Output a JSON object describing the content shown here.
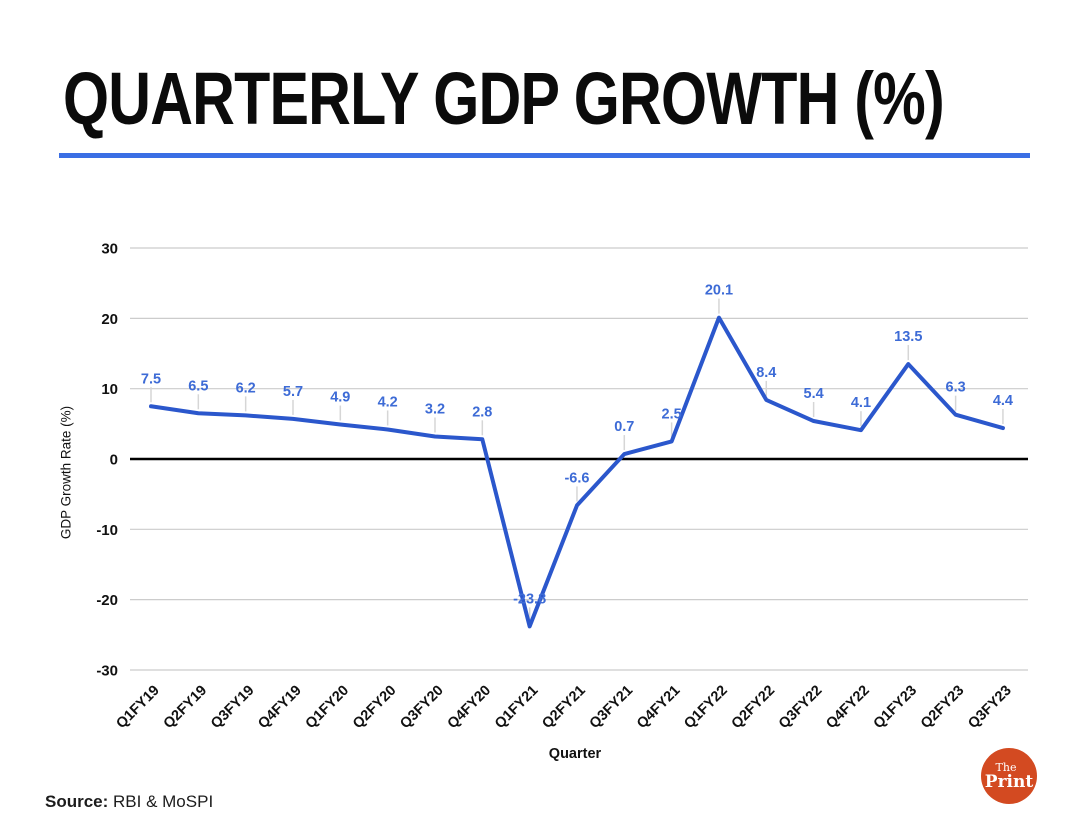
{
  "title": "QUARTERLY GDP GROWTH (%)",
  "chart_data": {
    "type": "line",
    "categories": [
      "Q1FY19",
      "Q2FY19",
      "Q3FY19",
      "Q4FY19",
      "Q1FY20",
      "Q2FY20",
      "Q3FY20",
      "Q4FY20",
      "Q1FY21",
      "Q2FY21",
      "Q3FY21",
      "Q4FY21",
      "Q1FY22",
      "Q2FY22",
      "Q3FY22",
      "Q4FY22",
      "Q1FY23",
      "Q2FY23",
      "Q3FY23"
    ],
    "values": [
      7.5,
      6.5,
      6.2,
      5.7,
      4.9,
      4.2,
      3.2,
      2.8,
      -23.8,
      -6.6,
      0.7,
      2.5,
      20.1,
      8.4,
      5.4,
      4.1,
      13.5,
      6.3,
      4.4
    ],
    "labels": [
      "7.5",
      "6.5",
      "6.2",
      "5.7",
      "4.9",
      "4.2",
      "3.2",
      "2.8",
      "-23.8",
      "-6.6",
      "0.7",
      "2.5",
      "20.1",
      "8.4",
      "5.4",
      "4.1",
      "13.5",
      "6.3",
      "4.4"
    ],
    "title": "QUARTERLY GDP GROWTH (%)",
    "xlabel": "Quarter",
    "ylabel": "GDP Growth Rate (%)",
    "ylim": [
      -30,
      30
    ],
    "yticks": [
      30,
      20,
      10,
      0,
      -10,
      -20,
      -30
    ],
    "grid": true,
    "legend": "none",
    "data_labels": true
  },
  "colors": {
    "line": "#2b57cc",
    "data_label": "#3d6bd6",
    "grid": "#cccccc",
    "leader": "#d6d6d6",
    "zero_line": "#000000",
    "axis_text": "#111111",
    "title_underline": "#3b6fe4",
    "logo_bg": "#d34a21"
  },
  "source": {
    "label": "Source:",
    "text": " RBI & MoSPI"
  },
  "logo": {
    "line1": "The",
    "line2": "Print"
  }
}
